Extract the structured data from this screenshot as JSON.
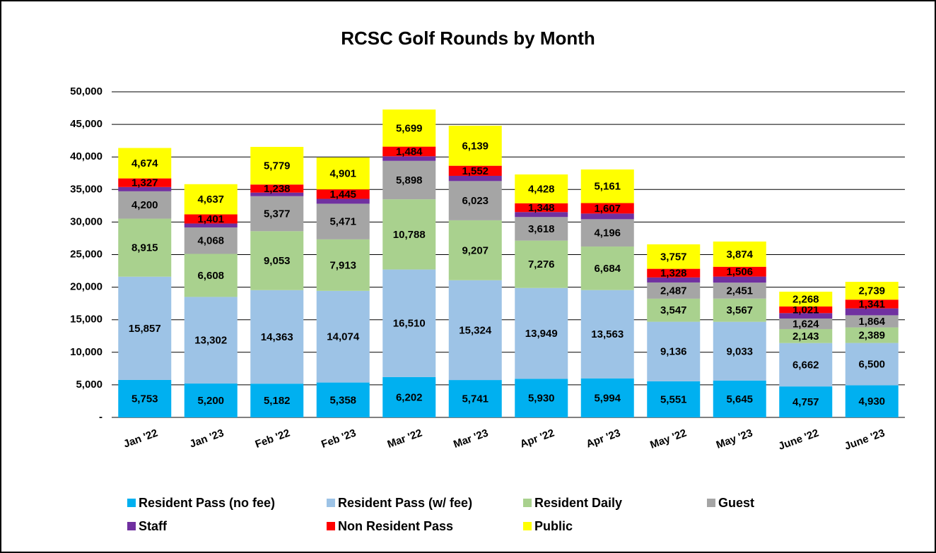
{
  "chart_data": {
    "type": "stacked_bar",
    "title": "RCSC Golf Rounds by Month",
    "categories": [
      "Jan '22",
      "Jan '23",
      "Feb '22",
      "Feb '23",
      "Mar '22",
      "Mar '23",
      "Apr '22",
      "Apr '23",
      "May '22",
      "May '23",
      "June '22",
      "June '23"
    ],
    "ylim": [
      0,
      50000
    ],
    "yticks": [
      {
        "value": 0,
        "label": "-"
      },
      {
        "value": 5000,
        "label": "5,000"
      },
      {
        "value": 10000,
        "label": "10,000"
      },
      {
        "value": 15000,
        "label": "15,000"
      },
      {
        "value": 20000,
        "label": "20,000"
      },
      {
        "value": 25000,
        "label": "25,000"
      },
      {
        "value": 30000,
        "label": "30,000"
      },
      {
        "value": 35000,
        "label": "35,000"
      },
      {
        "value": 40000,
        "label": "40,000"
      },
      {
        "value": 45000,
        "label": "45,000"
      },
      {
        "value": 50000,
        "label": "50,000"
      }
    ],
    "grid": true,
    "legend": "bottom",
    "series": [
      {
        "name": "Resident Pass (no fee)",
        "color": "#00b0f0",
        "values": [
          5753,
          5200,
          5182,
          5358,
          6202,
          5741,
          5930,
          5994,
          5551,
          5645,
          4757,
          4930
        ],
        "value_labels": [
          "5,753",
          "5,200",
          "5,182",
          "5,358",
          "6,202",
          "5,741",
          "5,930",
          "5,994",
          "5,551",
          "5,645",
          "4,757",
          "4,930"
        ]
      },
      {
        "name": "Resident Pass (w/ fee)",
        "color": "#9dc3e6",
        "values": [
          15857,
          13302,
          14363,
          14074,
          16510,
          15324,
          13949,
          13563,
          9136,
          9033,
          6662,
          6500
        ],
        "value_labels": [
          "15,857",
          "13,302",
          "14,363",
          "14,074",
          "16,510",
          "15,324",
          "13,949",
          "13,563",
          "9,136",
          "9,033",
          "6,662",
          "6,500"
        ]
      },
      {
        "name": "Resident Daily",
        "color": "#a9d18e",
        "values": [
          8915,
          6608,
          9053,
          7913,
          10788,
          9207,
          7276,
          6684,
          3547,
          3567,
          2143,
          2389
        ],
        "value_labels": [
          "8,915",
          "6,608",
          "9,053",
          "7,913",
          "10,788",
          "9,207",
          "7,276",
          "6,684",
          "3,547",
          "3,567",
          "2,143",
          "2,389"
        ]
      },
      {
        "name": "Guest",
        "color": "#a5a5a5",
        "values": [
          4200,
          4068,
          5377,
          5471,
          5898,
          6023,
          3618,
          4196,
          2487,
          2451,
          1624,
          1864
        ],
        "value_labels": [
          "4,200",
          "4,068",
          "5,377",
          "5,471",
          "5,898",
          "6,023",
          "3,618",
          "4,196",
          "2,487",
          "2,451",
          "1,624",
          "1,864"
        ]
      },
      {
        "name": "Staff",
        "color": "#7030a0",
        "values": [
          650,
          600,
          550,
          750,
          700,
          800,
          760,
          870,
          770,
          930,
          830,
          1060
        ]
      },
      {
        "name": "Non Resident Pass",
        "color": "#ff0000",
        "values": [
          1327,
          1401,
          1238,
          1445,
          1484,
          1552,
          1348,
          1607,
          1328,
          1506,
          1021,
          1341
        ],
        "value_labels": [
          "1,327",
          "1,401",
          "1,238",
          "1,445",
          "1,484",
          "1,552",
          "1,348",
          "1,607",
          "1,328",
          "1,506",
          "1,021",
          "1,341"
        ]
      },
      {
        "name": "Public",
        "color": "#ffff00",
        "values": [
          4674,
          4637,
          5779,
          4901,
          5699,
          6139,
          4428,
          5161,
          3757,
          3874,
          2268,
          2739
        ],
        "value_labels": [
          "4,674",
          "4,637",
          "5,779",
          "4,901",
          "5,699",
          "6,139",
          "4,428",
          "5,161",
          "3,757",
          "3,874",
          "2,268",
          "2,739"
        ]
      }
    ]
  }
}
